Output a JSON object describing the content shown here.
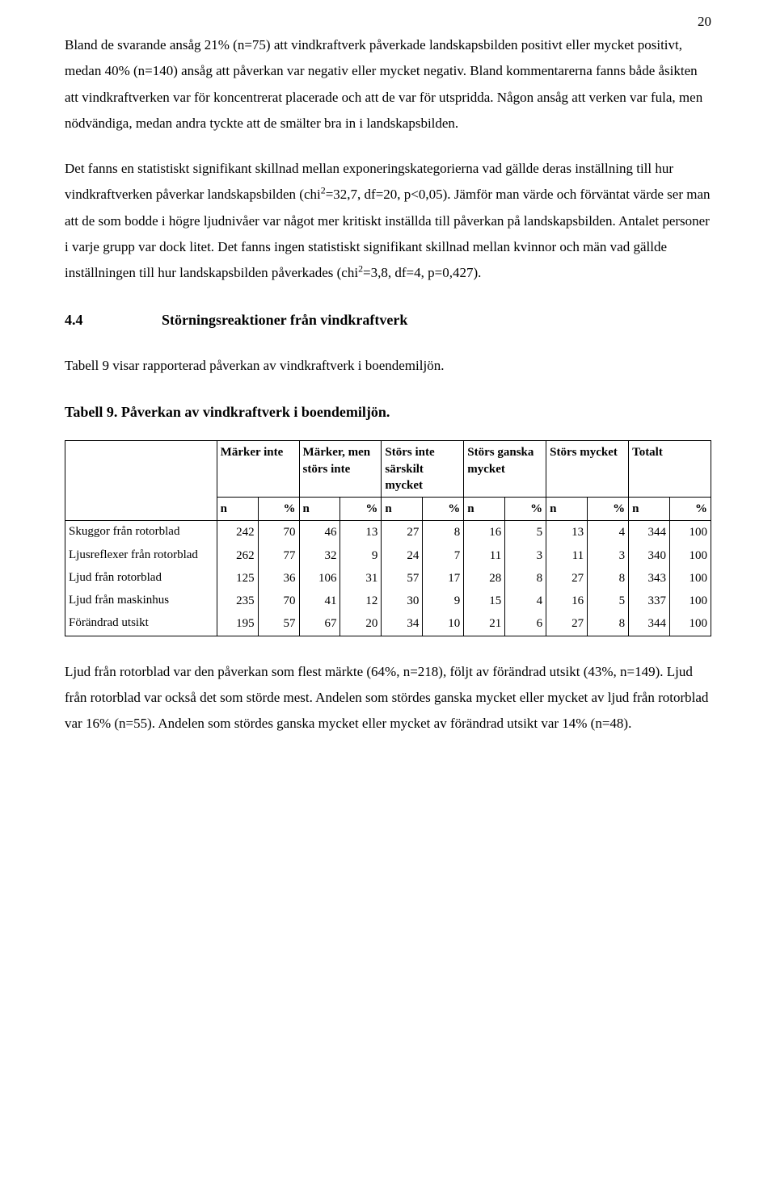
{
  "page_number": "20",
  "para1_text": "Bland de svarande ansåg 21% (n=75) att vindkraftverk påverkade landskapsbilden positivt eller mycket positivt, medan 40% (n=140) ansåg att påverkan var negativ eller mycket negativ. Bland kommentarerna fanns både åsikten att vindkraftverken var för koncentrerat placerade och att de var för utspridda. Någon ansåg att verken var fula, men nödvändiga, medan andra tyckte att de smälter bra in i landskapsbilden.",
  "para2_pre": "Det fanns en statistiskt signifikant skillnad mellan exponeringskategorierna vad gällde deras inställning till hur vindkraftverken påverkar landskapsbilden (chi",
  "para2_sup1": "2",
  "para2_mid": "=32,7, df=20, p<0,05). Jämför man värde och förväntat värde ser man att de som bodde i högre ljudnivåer var något mer kritiskt inställda till påverkan på landskapsbilden. Antalet personer i varje grupp var dock litet. Det fanns ingen statistiskt signifikant skillnad mellan kvinnor och män vad gällde inställningen till hur landskapsbilden påverkades (chi",
  "para2_sup2": "2",
  "para2_post": "=3,8, df=4, p=0,427).",
  "section_number": "4.4",
  "section_title": "Störningsreaktioner från vindkraftverk",
  "para3_text": "Tabell 9 visar rapporterad påverkan av vindkraftverk i boendemiljön.",
  "table_caption": "Tabell 9. Påverkan av vindkraftverk i boendemiljön.",
  "headers": {
    "c1": "Märker inte",
    "c2": "Märker, men störs inte",
    "c3": "Störs inte särskilt mycket",
    "c4": "Störs ganska mycket",
    "c5": "Störs mycket",
    "c6": "Totalt",
    "n": "n",
    "pct": "%"
  },
  "rows": [
    {
      "label": "Skuggor från rotorblad",
      "v": [
        "242",
        "70",
        "46",
        "13",
        "27",
        "8",
        "16",
        "5",
        "13",
        "4",
        "344",
        "100"
      ]
    },
    {
      "label": "Ljusreflexer från rotorblad",
      "v": [
        "262",
        "77",
        "32",
        "9",
        "24",
        "7",
        "11",
        "3",
        "11",
        "3",
        "340",
        "100"
      ]
    },
    {
      "label": "Ljud från rotorblad",
      "v": [
        "125",
        "36",
        "106",
        "31",
        "57",
        "17",
        "28",
        "8",
        "27",
        "8",
        "343",
        "100"
      ]
    },
    {
      "label": "Ljud från maskinhus",
      "v": [
        "235",
        "70",
        "41",
        "12",
        "30",
        "9",
        "15",
        "4",
        "16",
        "5",
        "337",
        "100"
      ]
    },
    {
      "label": "Förändrad utsikt",
      "v": [
        "195",
        "57",
        "67",
        "20",
        "34",
        "10",
        "21",
        "6",
        "27",
        "8",
        "344",
        "100"
      ]
    }
  ],
  "para4_text": "Ljud från rotorblad var den påverkan som flest märkte (64%, n=218), följt av förändrad utsikt (43%, n=149). Ljud från rotorblad var också det som störde mest. Andelen som stördes ganska mycket eller mycket av ljud från rotorblad var 16% (n=55). Andelen som stördes ganska mycket eller mycket av förändrad utsikt var 14% (n=48)."
}
